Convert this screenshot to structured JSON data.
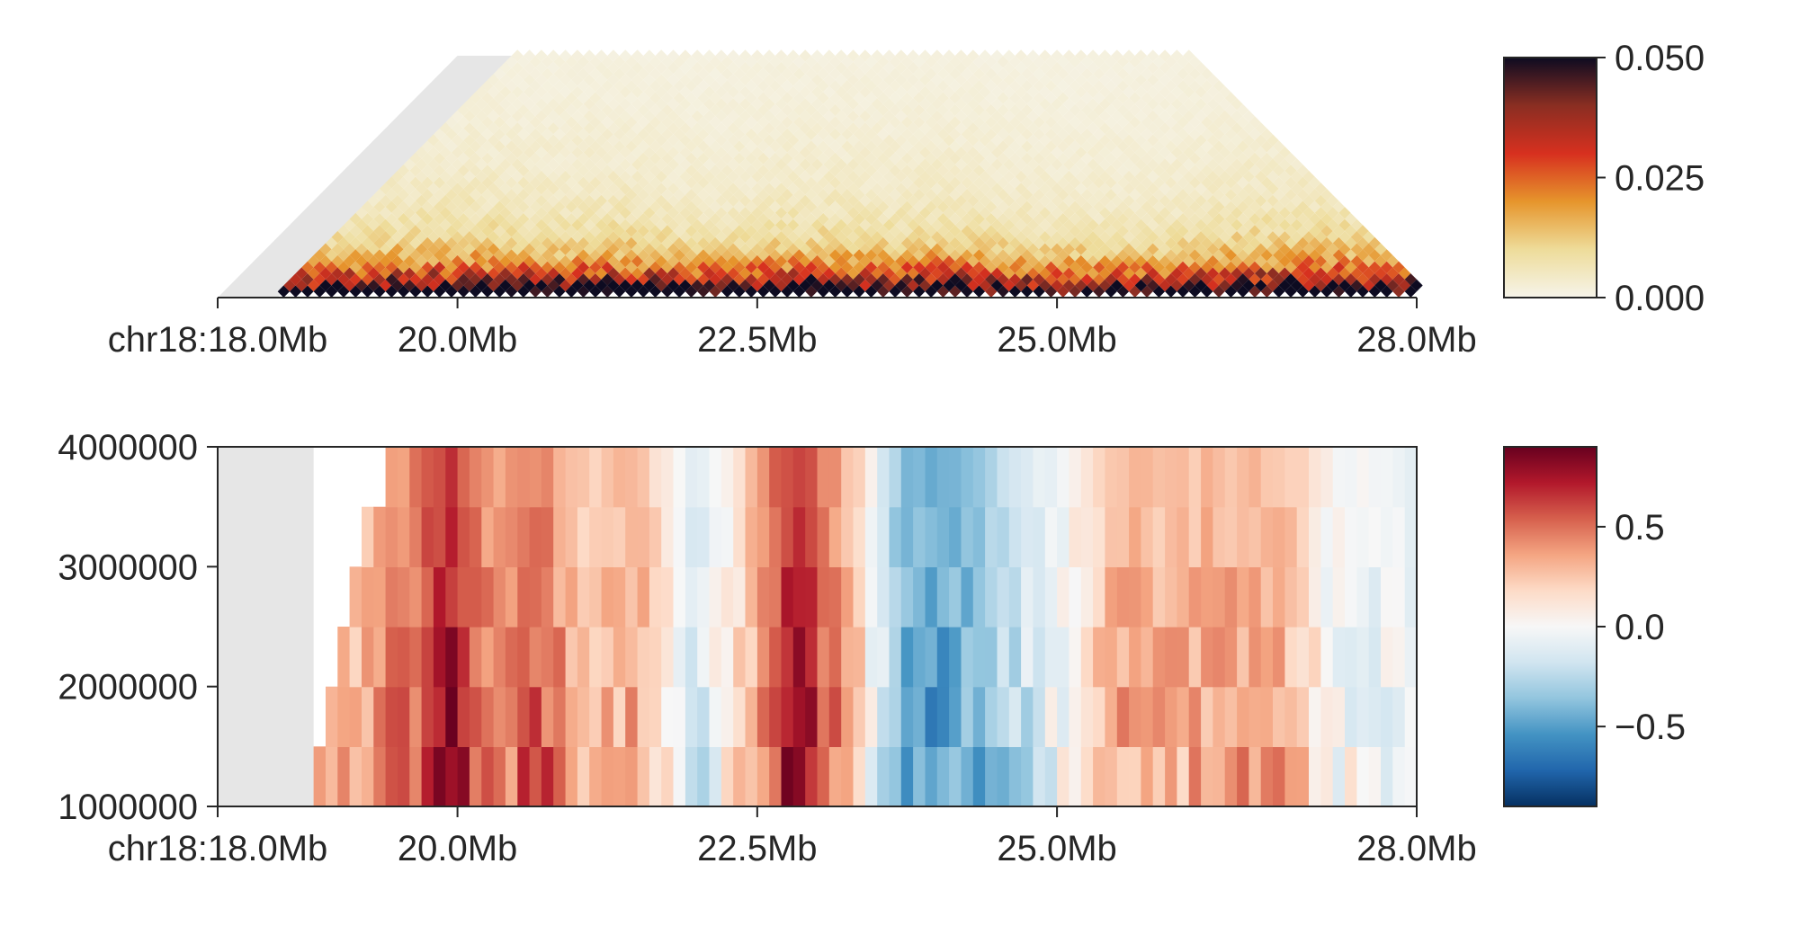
{
  "chart_data": [
    {
      "type": "heatmap",
      "subtype": "triangular-contact-map",
      "chromosome": "chr18",
      "x_range_mb": [
        18.0,
        28.0
      ],
      "x_ticks": [
        {
          "value": 18.0,
          "label": "chr18:18.0Mb"
        },
        {
          "value": 20.0,
          "label": "20.0Mb"
        },
        {
          "value": 22.5,
          "label": "22.5Mb"
        },
        {
          "value": 25.0,
          "label": "25.0Mb"
        },
        {
          "value": 28.0,
          "label": "28.0Mb"
        }
      ],
      "missing_region_mb": [
        18.0,
        18.5
      ],
      "max_distance_mb": 4.0,
      "colorbar": {
        "range": [
          0.0,
          0.05
        ],
        "ticks": [
          "0.000",
          "0.025",
          "0.050"
        ],
        "colors": [
          "#f6f4ea",
          "#eedc9a",
          "#e6952c",
          "#d7301f",
          "#8a2e22",
          "#0d0b21"
        ]
      },
      "noise_seed": 7,
      "missing_color": "#e6e6e6",
      "grid": false
    },
    {
      "type": "heatmap",
      "subtype": "insulation-score-by-window",
      "x_range_mb": [
        18.0,
        28.0
      ],
      "x_ticks": [
        {
          "value": 18.0,
          "label": "chr18:18.0Mb"
        },
        {
          "value": 20.0,
          "label": "20.0Mb"
        },
        {
          "value": 22.5,
          "label": "22.5Mb"
        },
        {
          "value": 25.0,
          "label": "25.0Mb"
        },
        {
          "value": 28.0,
          "label": "28.0Mb"
        }
      ],
      "y_windows": [
        1000000,
        1500000,
        2000000,
        2500000,
        3000000,
        3500000
      ],
      "y_range": [
        1000000,
        4000000
      ],
      "y_ticks": [
        "1000000",
        "2000000",
        "3000000",
        "4000000"
      ],
      "missing_region_mb": [
        18.0,
        18.8
      ],
      "bin_size_mb": 0.1,
      "row_start_mb": [
        18.8,
        18.9,
        19.0,
        19.1,
        19.2,
        19.4
      ],
      "profile_mb": [
        18.8,
        19.2,
        19.6,
        19.95,
        20.3,
        20.7,
        21.0,
        21.5,
        22.0,
        22.3,
        22.8,
        23.3,
        23.7,
        24.0,
        24.5,
        25.0,
        25.5,
        26.0,
        26.5,
        26.9,
        27.3,
        28.0
      ],
      "profile_values": [
        0.3,
        0.3,
        0.5,
        0.75,
        0.4,
        0.55,
        0.25,
        0.35,
        -0.15,
        0.1,
        0.8,
        0.3,
        -0.45,
        -0.5,
        -0.3,
        -0.05,
        0.35,
        0.3,
        0.35,
        0.3,
        0.0,
        -0.1
      ],
      "colorbar": {
        "range": [
          -0.9,
          0.9
        ],
        "ticks": [
          "−0.5",
          "0.0",
          "0.5"
        ],
        "tick_values": [
          -0.5,
          0.0,
          0.5
        ],
        "colors": [
          "#053061",
          "#2166ac",
          "#4393c3",
          "#92c5de",
          "#d1e5f0",
          "#f7f7f7",
          "#fddbc7",
          "#f4a582",
          "#d6604d",
          "#b2182b",
          "#67001f"
        ]
      },
      "missing_color": "#e6e6e6",
      "grid": false
    }
  ]
}
